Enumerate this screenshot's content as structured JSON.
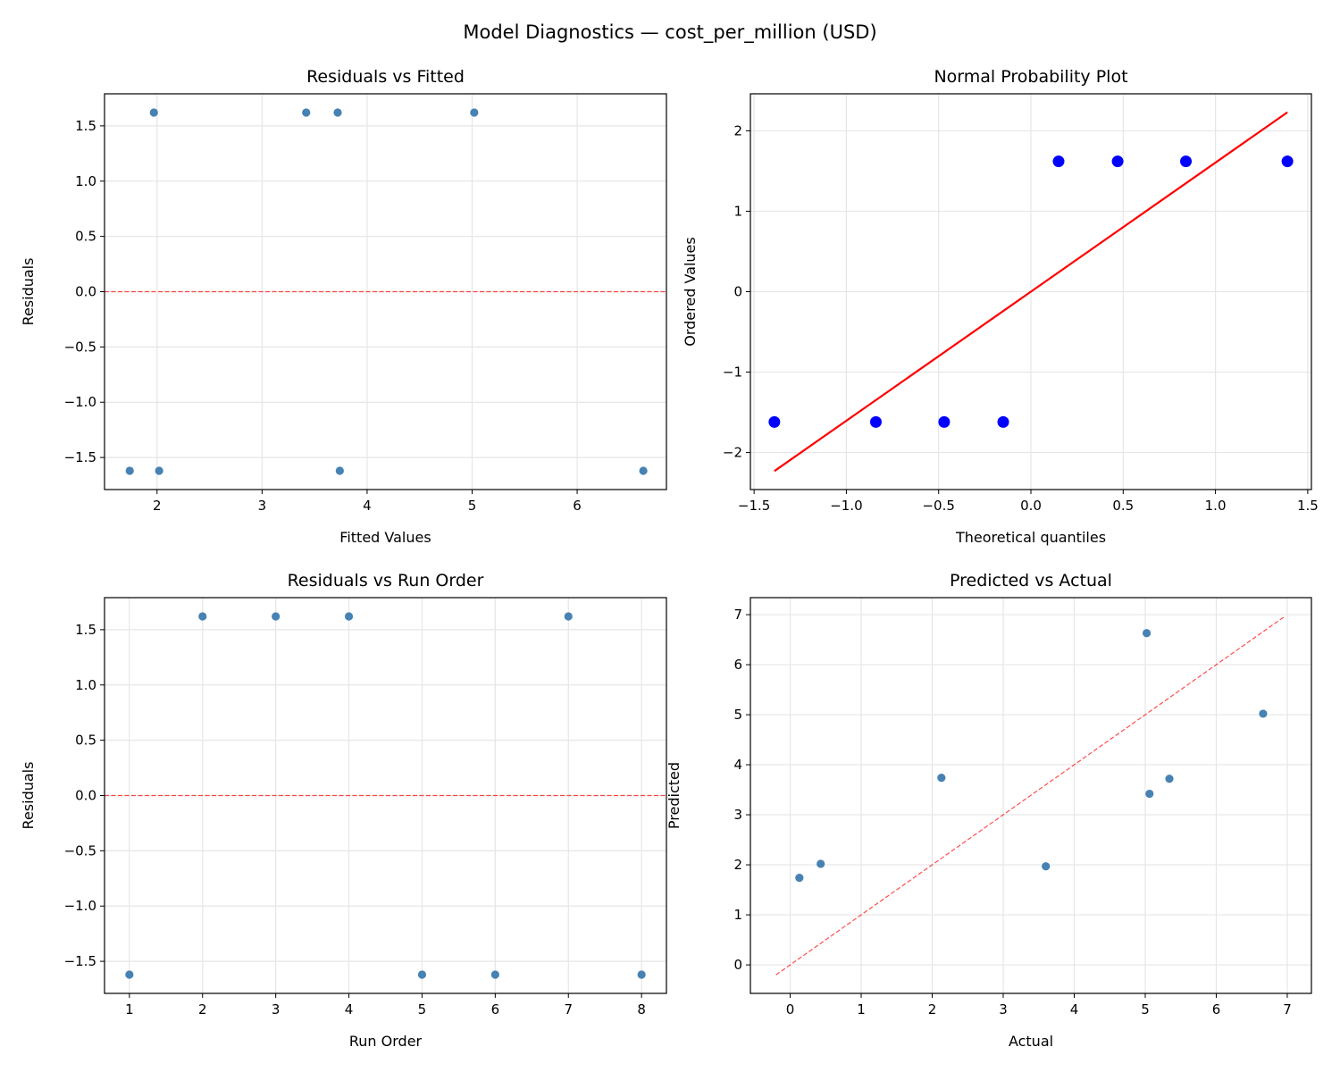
{
  "title": "Model Diagnostics — cost_per_million (USD)",
  "chart_data": [
    {
      "type": "scatter",
      "title": "Residuals vs Fitted",
      "xlabel": "Fitted Values",
      "ylabel": "Residuals",
      "xlim": [
        1.5,
        6.85
      ],
      "ylim": [
        -1.79,
        1.79
      ],
      "xticks": [
        2,
        3,
        4,
        5,
        6
      ],
      "xtick_labels": [
        "2",
        "3",
        "4",
        "5",
        "6"
      ],
      "yticks": [
        -1.5,
        -1.0,
        -0.5,
        0.0,
        0.5,
        1.0,
        1.5
      ],
      "ytick_labels": [
        "−1.5",
        "−1.0",
        "−0.5",
        "0.0",
        "0.5",
        "1.0",
        "1.5"
      ],
      "grid": true,
      "point_color": "#4682b4",
      "x": [
        1.74,
        1.97,
        2.02,
        3.42,
        3.72,
        3.74,
        5.02,
        6.63
      ],
      "y": [
        -1.62,
        1.62,
        -1.62,
        1.62,
        1.62,
        -1.62,
        1.62,
        -1.62
      ],
      "reference_line": {
        "kind": "horizontal",
        "y": 0,
        "style": "dashed",
        "color": "#ff0000"
      }
    },
    {
      "type": "scatter",
      "title": "Normal Probability Plot",
      "xlabel": "Theoretical quantiles",
      "ylabel": "Ordered Values",
      "xlim": [
        -1.52,
        1.52
      ],
      "ylim": [
        -2.46,
        2.46
      ],
      "xticks": [
        -1.5,
        -1.0,
        -0.5,
        0.0,
        0.5,
        1.0,
        1.5
      ],
      "xtick_labels": [
        "−1.5",
        "−1.0",
        "−0.5",
        "0.0",
        "0.5",
        "1.0",
        "1.5"
      ],
      "yticks": [
        -2,
        -1,
        0,
        1,
        2
      ],
      "ytick_labels": [
        "−2",
        "−1",
        "0",
        "1",
        "2"
      ],
      "grid": true,
      "point_color": "#0000ff",
      "x": [
        -1.39,
        -0.84,
        -0.47,
        -0.15,
        0.15,
        0.47,
        0.84,
        1.39
      ],
      "y": [
        -1.62,
        -1.62,
        -1.62,
        -1.62,
        1.62,
        1.62,
        1.62,
        1.62
      ],
      "fit_line": {
        "x": [
          -1.39,
          1.39
        ],
        "y": [
          -2.23,
          2.23
        ],
        "style": "solid",
        "color": "#ff0000"
      }
    },
    {
      "type": "scatter",
      "title": "Residuals vs Run Order",
      "xlabel": "Run Order",
      "ylabel": "Residuals",
      "xlim": [
        0.66,
        8.34
      ],
      "ylim": [
        -1.79,
        1.79
      ],
      "xticks": [
        1,
        2,
        3,
        4,
        5,
        6,
        7,
        8
      ],
      "xtick_labels": [
        "1",
        "2",
        "3",
        "4",
        "5",
        "6",
        "7",
        "8"
      ],
      "yticks": [
        -1.5,
        -1.0,
        -0.5,
        0.0,
        0.5,
        1.0,
        1.5
      ],
      "ytick_labels": [
        "−1.5",
        "−1.0",
        "−0.5",
        "0.0",
        "0.5",
        "1.0",
        "1.5"
      ],
      "grid": true,
      "point_color": "#4682b4",
      "x": [
        1,
        2,
        3,
        4,
        5,
        6,
        7,
        8
      ],
      "y": [
        -1.62,
        1.62,
        1.62,
        1.62,
        -1.62,
        -1.62,
        1.62,
        -1.62
      ],
      "reference_line": {
        "kind": "horizontal",
        "y": 0,
        "style": "dashed",
        "color": "#ff0000"
      }
    },
    {
      "type": "scatter",
      "title": "Predicted vs Actual",
      "xlabel": "Actual",
      "ylabel": "Predicted",
      "xlim": [
        -0.56,
        7.34
      ],
      "ylim": [
        -0.57,
        7.34
      ],
      "xticks": [
        0,
        1,
        2,
        3,
        4,
        5,
        6,
        7
      ],
      "xtick_labels": [
        "0",
        "1",
        "2",
        "3",
        "4",
        "5",
        "6",
        "7"
      ],
      "yticks": [
        0,
        1,
        2,
        3,
        4,
        5,
        6,
        7
      ],
      "ytick_labels": [
        "0",
        "1",
        "2",
        "3",
        "4",
        "5",
        "6",
        "7"
      ],
      "grid": true,
      "point_color": "#4682b4",
      "x": [
        0.13,
        0.43,
        2.13,
        3.6,
        5.02,
        5.06,
        5.34,
        6.66
      ],
      "y": [
        1.74,
        2.02,
        3.74,
        1.97,
        6.63,
        3.42,
        3.72,
        5.02
      ],
      "reference_line": {
        "kind": "diagonal",
        "x": [
          -0.2,
          6.97
        ],
        "y": [
          -0.2,
          6.97
        ],
        "style": "dashed",
        "color": "#ff0000"
      }
    }
  ]
}
